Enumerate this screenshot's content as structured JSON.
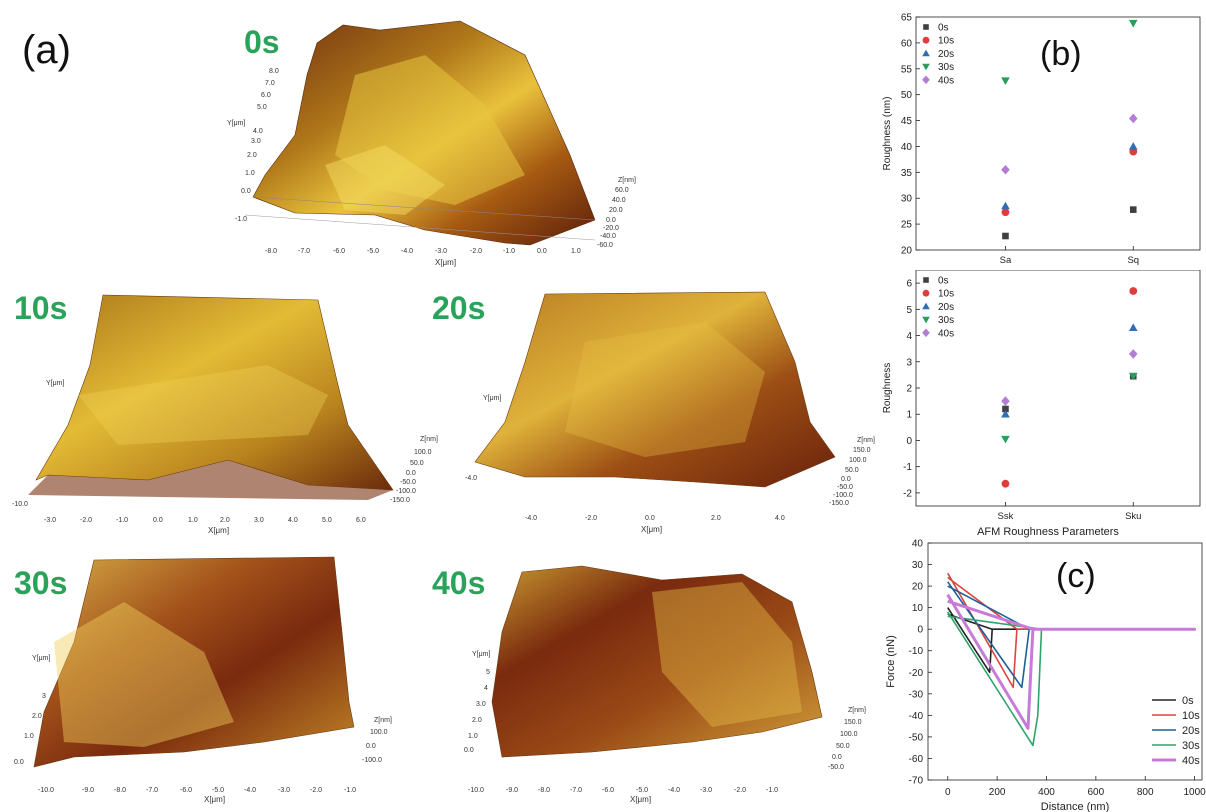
{
  "panel_a": {
    "letter": "(a)",
    "surfaces": [
      {
        "label": "0s",
        "x_axis": "X[μm]",
        "x_ticks": [
          "-8.0",
          "-7.0",
          "-6.0",
          "-5.0",
          "-4.0",
          "-3.0",
          "-2.0",
          "-1.0",
          "0.0",
          "1.0"
        ],
        "y_axis": "Y[μm]",
        "y_ticks": [
          "8.0",
          "7.0",
          "6.0",
          "5.0",
          "4.0",
          "3.0",
          "2.0",
          "1.0",
          "0.0",
          "-1.0"
        ],
        "z_axis": "Z[nm]",
        "z_ticks": [
          "60.0",
          "40.0",
          "20.0",
          "0.0",
          "-20.0",
          "-40.0",
          "-60.0"
        ]
      },
      {
        "label": "10s",
        "x_axis": "X[μm]",
        "x_ticks": [
          "-3.0",
          "-2.0",
          "-1.0",
          "0.0",
          "1.0",
          "2.0",
          "3.0",
          "4.0",
          "5.0",
          "6.0"
        ],
        "y_axis": "Y[μm]",
        "y_ticks": [
          "-10.0"
        ],
        "z_axis": "Z[nm]",
        "z_ticks": [
          "100.0",
          "50.0",
          "0.0",
          "-50.0",
          "-100.0",
          "-150.0"
        ]
      },
      {
        "label": "20s",
        "x_axis": "X[μm]",
        "x_ticks": [
          "-4.0",
          "-2.0",
          "0.0",
          "2.0",
          "4.0"
        ],
        "y_axis": "Y[μm]",
        "y_ticks": [
          "-4.0"
        ],
        "z_axis": "Z[nm]",
        "z_ticks": [
          "150.0",
          "100.0",
          "50.0",
          "0.0",
          "-50.0",
          "-100.0",
          "-150.0"
        ]
      },
      {
        "label": "30s",
        "x_axis": "X[μm]",
        "x_ticks": [
          "-10.0",
          "-9.0",
          "-8.0",
          "-7.0",
          "-6.0",
          "-5.0",
          "-4.0",
          "-3.0",
          "-2.0",
          "-1.0"
        ],
        "y_axis": "Y[μm]",
        "y_ticks": [
          "3",
          "2.0",
          "1.0",
          "0.0"
        ],
        "z_axis": "Z[nm]",
        "z_ticks": [
          "100.0",
          "0.0",
          "-100.0"
        ]
      },
      {
        "label": "40s",
        "x_axis": "X[μm]",
        "x_ticks": [
          "-10.0",
          "-9.0",
          "-8.0",
          "-7.0",
          "-6.0",
          "-5.0",
          "-4.0",
          "-3.0",
          "-2.0",
          "-1.0"
        ],
        "y_axis": "Y[μm]",
        "y_ticks": [
          "5",
          "4",
          "3.0",
          "2.0",
          "1.0",
          "0.0"
        ],
        "z_axis": "Z[nm]",
        "z_ticks": [
          "150.0",
          "100.0",
          "50.0",
          "0.0",
          "-50.0"
        ]
      }
    ]
  },
  "chart_data": [
    {
      "id": "b_top",
      "letter": "(b)",
      "type": "scatter",
      "categories": [
        "Sa",
        "Sq"
      ],
      "ylabel": "Roughness (nm)",
      "xlabel": "",
      "ylim": [
        20,
        65
      ],
      "yticks": [
        20,
        25,
        30,
        35,
        40,
        45,
        50,
        55,
        60,
        65
      ],
      "legend_position": "top-left",
      "series": [
        {
          "name": "0s",
          "color": "#404040",
          "marker": "square",
          "values": [
            22.7,
            27.8
          ]
        },
        {
          "name": "10s",
          "color": "#e03c3c",
          "marker": "circle",
          "values": [
            27.3,
            39.0
          ]
        },
        {
          "name": "20s",
          "color": "#2f6db5",
          "marker": "triangle-up",
          "values": [
            28.5,
            40.0
          ]
        },
        {
          "name": "30s",
          "color": "#2a9d5c",
          "marker": "triangle-down",
          "values": [
            52.7,
            63.8
          ]
        },
        {
          "name": "40s",
          "color": "#b57cd6",
          "marker": "diamond",
          "values": [
            35.5,
            45.4
          ]
        }
      ]
    },
    {
      "id": "b_bottom",
      "type": "scatter",
      "categories": [
        "Ssk",
        "Sku"
      ],
      "ylabel": "Roughness",
      "xlabel": "AFM Roughness Parameters",
      "ylim": [
        -2.5,
        6.5
      ],
      "yticks": [
        -2,
        -1,
        0,
        1,
        2,
        3,
        4,
        5,
        6
      ],
      "legend_position": "top-left",
      "series": [
        {
          "name": "0s",
          "color": "#404040",
          "marker": "square",
          "values": [
            1.2,
            2.45
          ]
        },
        {
          "name": "10s",
          "color": "#e03c3c",
          "marker": "circle",
          "values": [
            -1.65,
            5.7
          ]
        },
        {
          "name": "20s",
          "color": "#2f6db5",
          "marker": "triangle-up",
          "values": [
            1.0,
            4.3
          ]
        },
        {
          "name": "30s",
          "color": "#2a9d5c",
          "marker": "triangle-down",
          "values": [
            0.05,
            2.45
          ]
        },
        {
          "name": "40s",
          "color": "#b57cd6",
          "marker": "diamond",
          "values": [
            1.5,
            3.3
          ]
        }
      ]
    },
    {
      "id": "c",
      "letter": "(c)",
      "type": "line",
      "xlabel": "Distance (nm)",
      "ylabel": "Force (nN)",
      "xlim": [
        -80,
        1030
      ],
      "ylim": [
        -70,
        40
      ],
      "xticks": [
        0,
        200,
        400,
        600,
        800,
        1000
      ],
      "yticks": [
        -70,
        -60,
        -50,
        -40,
        -30,
        -20,
        -10,
        0,
        10,
        20,
        30,
        40
      ],
      "legend_position": "bottom-right",
      "series": [
        {
          "name": "0s",
          "color": "#222222",
          "width": 1.6,
          "x": [
            0,
            170,
            180,
            1000,
            180,
            0
          ],
          "y": [
            10,
            -20,
            0,
            0,
            0,
            7
          ]
        },
        {
          "name": "10s",
          "color": "#d9463e",
          "width": 1.6,
          "x": [
            0,
            265,
            280,
            1000,
            280,
            0
          ],
          "y": [
            26,
            -27,
            0,
            0,
            0,
            24
          ]
        },
        {
          "name": "20s",
          "color": "#1f5f99",
          "width": 1.6,
          "x": [
            0,
            300,
            330,
            1000,
            330,
            0
          ],
          "y": [
            22,
            -27,
            0,
            0,
            0,
            20
          ]
        },
        {
          "name": "30s",
          "color": "#2fa36b",
          "width": 1.6,
          "x": [
            0,
            345,
            365,
            380,
            1000,
            380,
            0
          ],
          "y": [
            8,
            -54,
            -40,
            0,
            0,
            0,
            6
          ]
        },
        {
          "name": "40s",
          "color": "#c77bd9",
          "width": 3,
          "x": [
            0,
            325,
            345,
            1000,
            345,
            0
          ],
          "y": [
            16,
            -46,
            0,
            0,
            0,
            13
          ]
        }
      ]
    }
  ]
}
